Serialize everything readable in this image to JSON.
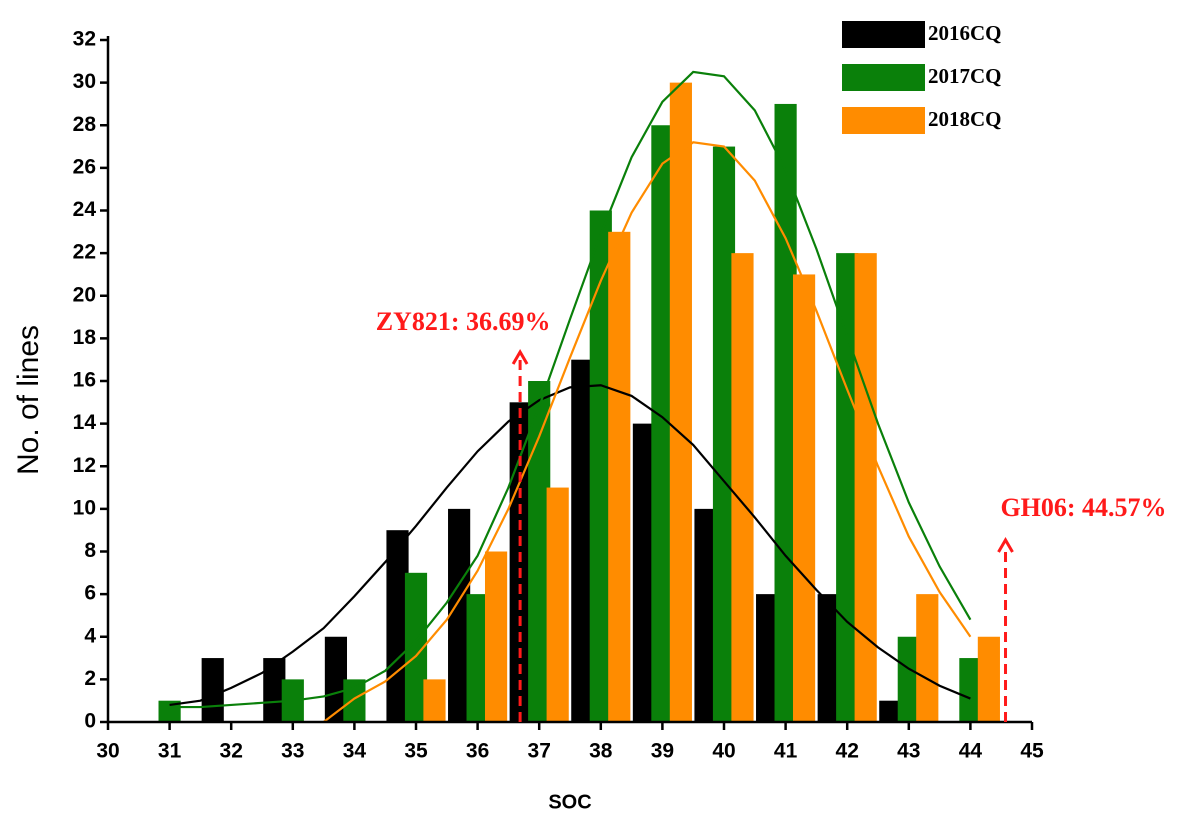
{
  "chart_data": {
    "type": "bar",
    "x_label": "SOC",
    "y_label": "No. of lines",
    "xlim": [
      30,
      45
    ],
    "ylim": [
      0,
      32
    ],
    "xticks": [
      30,
      31,
      32,
      33,
      34,
      35,
      36,
      37,
      38,
      39,
      40,
      41,
      42,
      43,
      44,
      45
    ],
    "yticks": [
      0,
      2,
      4,
      6,
      8,
      10,
      12,
      14,
      16,
      18,
      20,
      22,
      24,
      26,
      28,
      30,
      32
    ],
    "grid": false,
    "legend": "top-right",
    "series": [
      {
        "name": "2016CQ",
        "color": "#000000",
        "x": [
          31.7,
          32.7,
          33.7,
          34.7,
          35.7,
          36.7,
          37.7,
          38.7,
          39.7,
          40.7,
          41.7,
          42.7
        ],
        "values": [
          3,
          3,
          4,
          9,
          10,
          15,
          17,
          14,
          10,
          6,
          6,
          1
        ]
      },
      {
        "name": "2017CQ",
        "color": "#0a800a",
        "x": [
          31,
          33,
          34,
          35,
          36,
          37,
          38,
          39,
          40,
          41,
          42,
          43,
          44
        ],
        "values": [
          1,
          2,
          2,
          7,
          6,
          16,
          24,
          28,
          27,
          29,
          22,
          4,
          3
        ]
      },
      {
        "name": "2018CQ",
        "color": "#ff8c00",
        "x": [
          35.3,
          36.3,
          37.3,
          38.3,
          39.3,
          40.3,
          41.3,
          42.3,
          43.3,
          44.3
        ],
        "values": [
          2,
          8,
          11,
          23,
          30,
          22,
          21,
          22,
          6,
          4
        ]
      }
    ],
    "curves": [
      {
        "color": "#000000",
        "x": [
          31,
          31.5,
          32,
          32.5,
          33,
          33.5,
          34,
          34.5,
          35,
          35.5,
          36,
          36.5,
          37,
          37.5,
          38,
          38.5,
          39,
          39.5,
          40,
          40.5,
          41,
          41.5,
          42,
          42.5,
          43,
          43.5,
          44
        ],
        "values": [
          0.8,
          1.0,
          1.6,
          2.3,
          3.3,
          4.4,
          5.9,
          7.5,
          9.2,
          11.0,
          12.7,
          14.1,
          15.1,
          15.7,
          15.8,
          15.3,
          14.3,
          13.0,
          11.3,
          9.6,
          7.8,
          6.2,
          4.7,
          3.5,
          2.5,
          1.7,
          1.1
        ]
      },
      {
        "color": "#0a800a",
        "x": [
          31,
          31.5,
          32,
          32.5,
          33,
          33.5,
          34,
          34.5,
          35,
          35.5,
          36,
          36.5,
          37,
          37.5,
          38,
          38.5,
          39,
          39.5,
          40,
          40.5,
          41,
          41.5,
          42,
          42.5,
          43,
          43.5,
          44
        ],
        "values": [
          0.7,
          0.7,
          0.8,
          0.9,
          1.0,
          1.2,
          1.6,
          2.4,
          3.8,
          5.6,
          7.8,
          11.0,
          14.8,
          18.9,
          22.9,
          26.5,
          29.1,
          30.5,
          30.3,
          28.7,
          25.9,
          22.2,
          18.1,
          14.0,
          10.3,
          7.3,
          4.8
        ]
      },
      {
        "color": "#ff8c00",
        "x": [
          33.5,
          34,
          34.5,
          35,
          35.5,
          36,
          36.5,
          37,
          37.5,
          38,
          38.5,
          39,
          39.5,
          40,
          40.5,
          41,
          41.5,
          42,
          42.5,
          43,
          43.5,
          44
        ],
        "values": [
          0,
          1.1,
          1.9,
          3.1,
          4.8,
          7.1,
          10.0,
          13.4,
          17.1,
          20.7,
          23.9,
          26.2,
          27.2,
          27.0,
          25.4,
          22.7,
          19.3,
          15.6,
          12.0,
          8.7,
          6.1,
          4.0
        ]
      }
    ],
    "annotations": [
      {
        "text": "ZY821: 36.69%",
        "x": 36.69,
        "color": "#ff1a1a"
      },
      {
        "text": "GH06: 44.57%",
        "x": 44.57,
        "color": "#ff1a1a"
      }
    ]
  }
}
